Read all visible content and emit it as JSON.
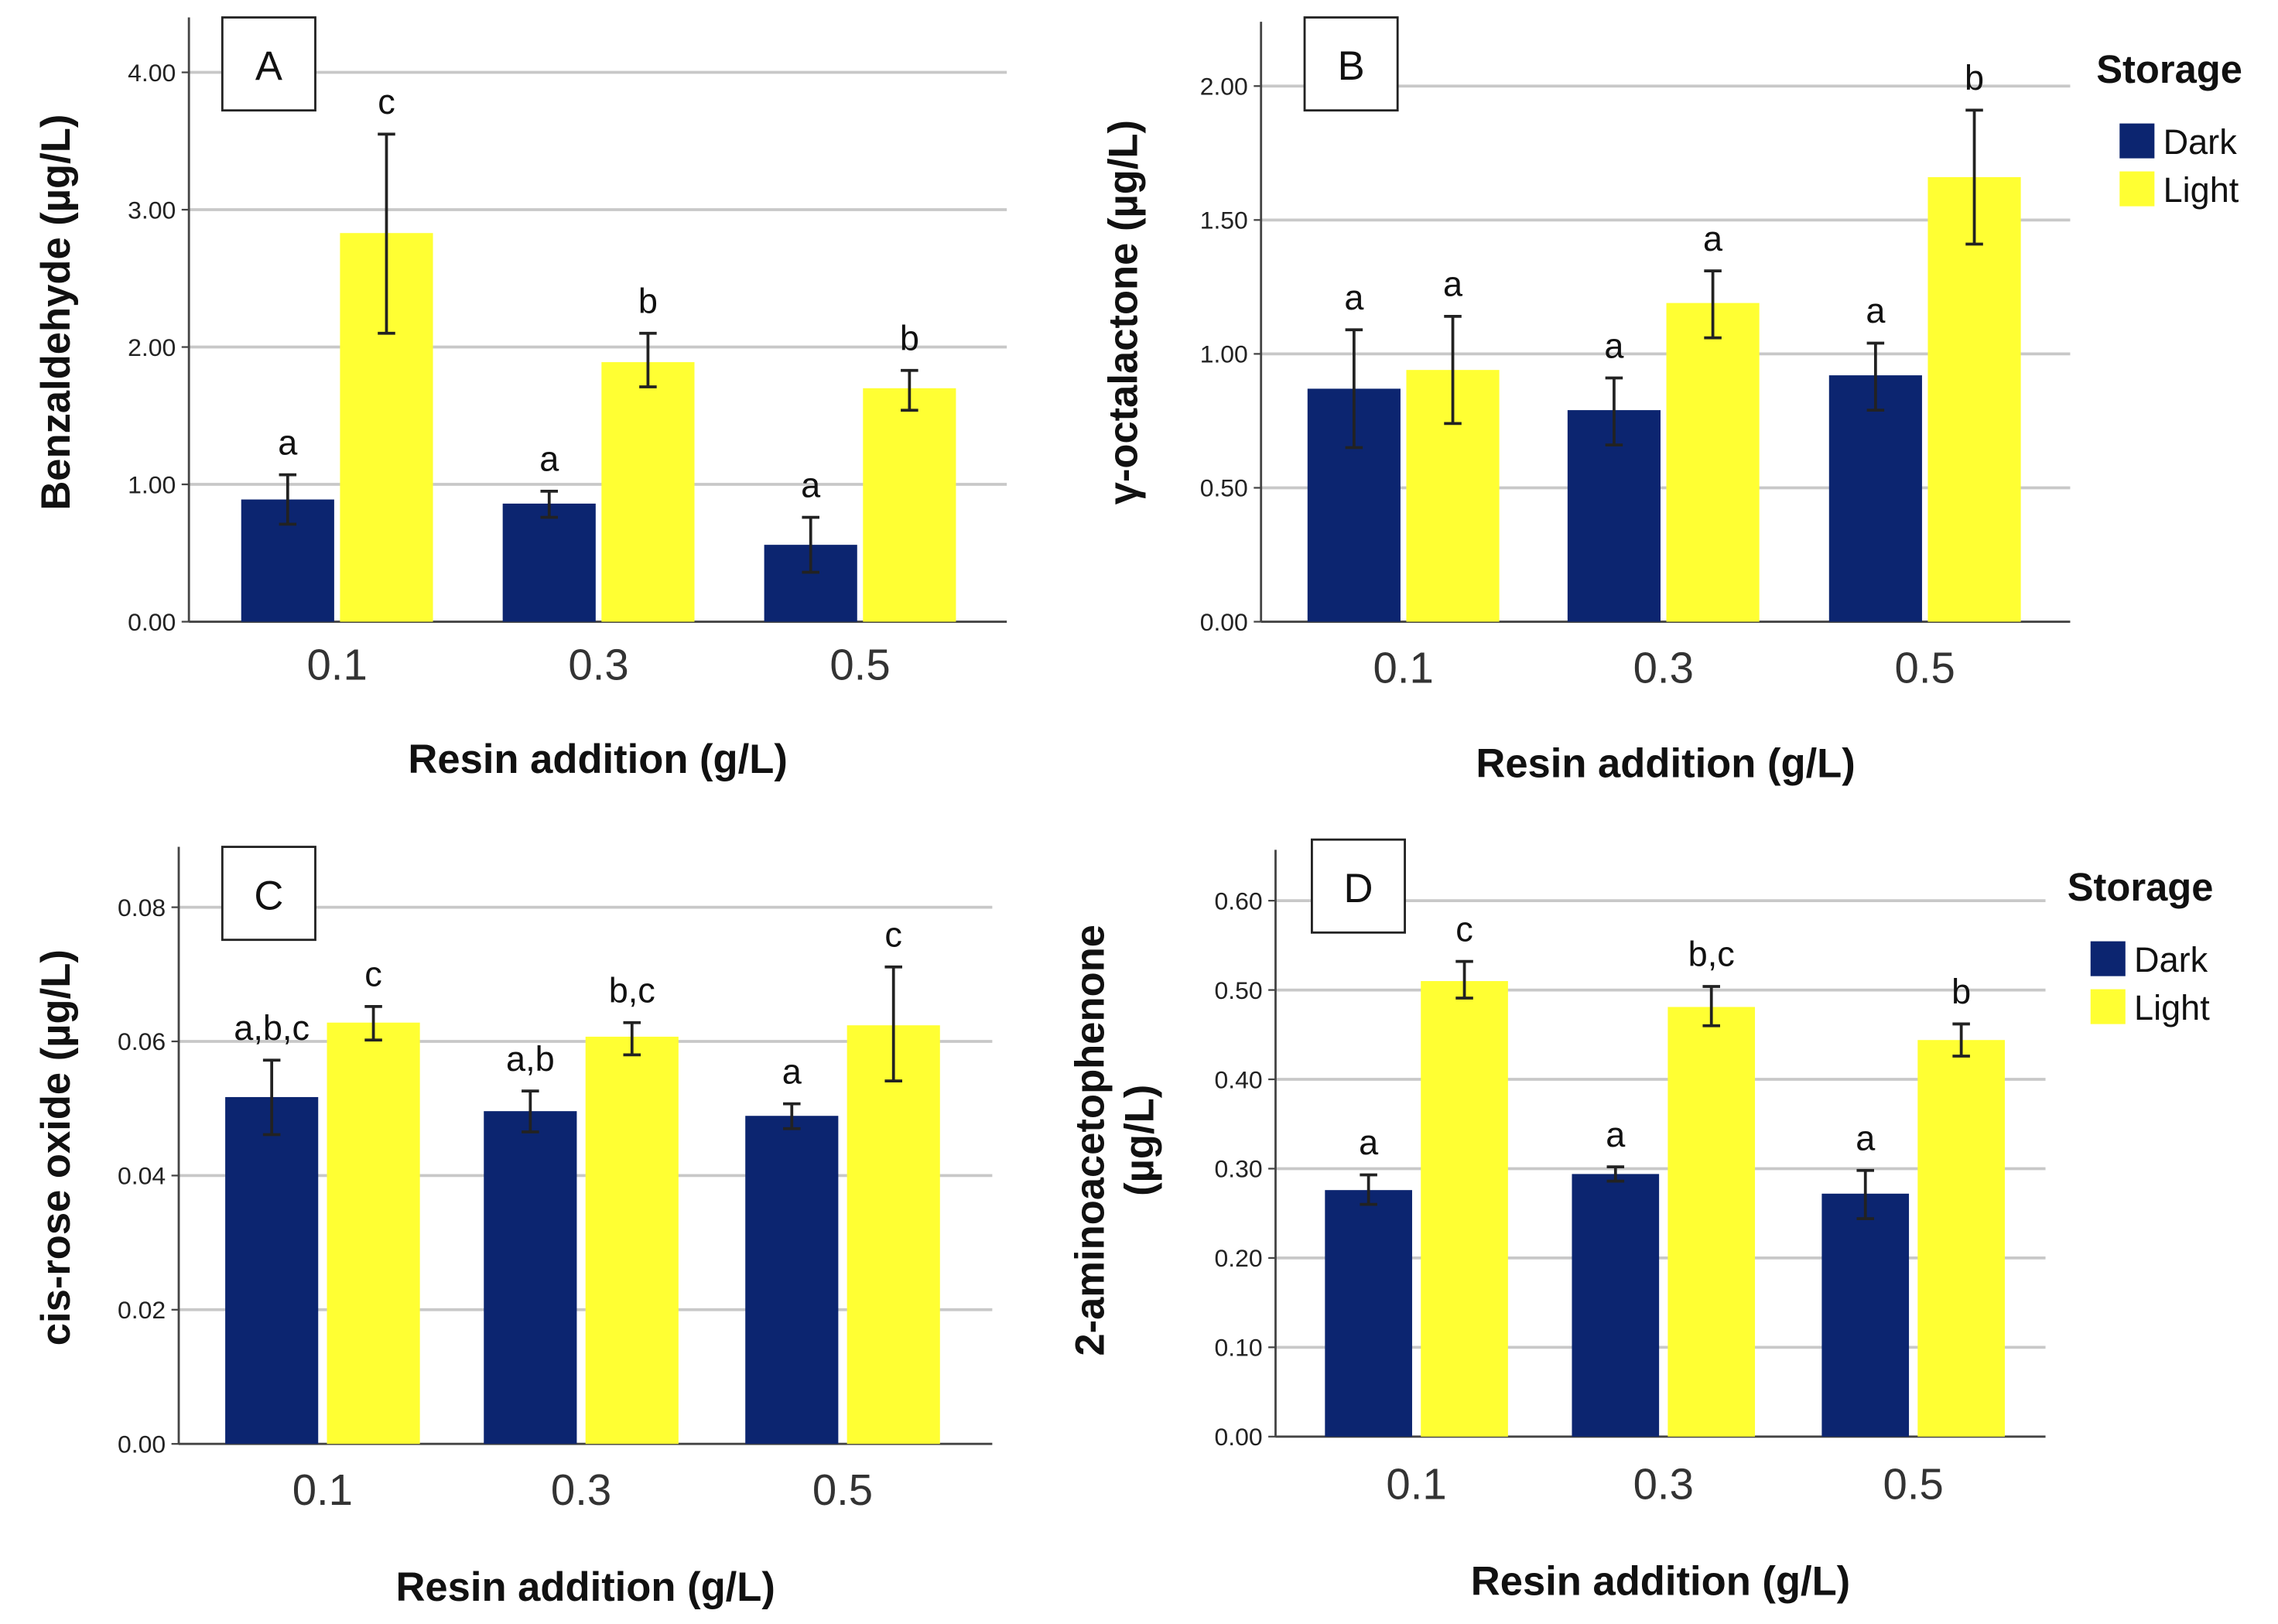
{
  "colors": {
    "dark": "#0c2570",
    "light": "#ffff33",
    "grid": "#c8c8c8"
  },
  "legend": {
    "title": "Storage",
    "items": [
      "Dark",
      "Light"
    ]
  },
  "chart_data": [
    {
      "type": "bar",
      "panel": "A",
      "ylabel": "Benzaldehyde (µg/L)",
      "xlabel": "Resin addition (g/L)",
      "categories": [
        "0.1",
        "0.3",
        "0.5"
      ],
      "yticks": [
        "0.00",
        "1.00",
        "2.00",
        "3.00",
        "4.00"
      ],
      "ylim": [
        0,
        4.4
      ],
      "series": [
        {
          "name": "Dark",
          "values": [
            0.89,
            0.86,
            0.56
          ],
          "err_low": [
            0.71,
            0.76,
            0.36
          ],
          "err_high": [
            1.07,
            0.95,
            0.76
          ],
          "letters": [
            "a",
            "a",
            "a"
          ]
        },
        {
          "name": "Light",
          "values": [
            2.83,
            1.89,
            1.7
          ],
          "err_low": [
            2.1,
            1.71,
            1.54
          ],
          "err_high": [
            3.55,
            2.1,
            1.83
          ],
          "letters": [
            "c",
            "b",
            "b"
          ]
        }
      ]
    },
    {
      "type": "bar",
      "panel": "B",
      "ylabel": "γ-octalactone (µg/L)",
      "xlabel": "Resin addition (g/L)",
      "categories": [
        "0.1",
        "0.3",
        "0.5"
      ],
      "yticks": [
        "0.00",
        "0.50",
        "1.00",
        "1.50",
        "2.00"
      ],
      "ylim": [
        0,
        2.24
      ],
      "series": [
        {
          "name": "Dark",
          "values": [
            0.87,
            0.79,
            0.92
          ],
          "err_low": [
            0.65,
            0.66,
            0.79
          ],
          "err_high": [
            1.09,
            0.91,
            1.04
          ],
          "letters": [
            "a",
            "a",
            "a"
          ]
        },
        {
          "name": "Light",
          "values": [
            0.94,
            1.19,
            1.66
          ],
          "err_low": [
            0.74,
            1.06,
            1.41
          ],
          "err_high": [
            1.14,
            1.31,
            1.91
          ],
          "letters": [
            "a",
            "a",
            "b"
          ]
        }
      ]
    },
    {
      "type": "bar",
      "panel": "C",
      "ylabel": "cis-rose oxide (µg/L)",
      "xlabel": "Resin addition (g/L)",
      "categories": [
        "0.1",
        "0.3",
        "0.5"
      ],
      "yticks": [
        "0.00",
        "0.02",
        "0.04",
        "0.06",
        "0.08"
      ],
      "ylim": [
        0,
        0.089
      ],
      "series": [
        {
          "name": "Dark",
          "values": [
            0.0517,
            0.0496,
            0.0489
          ],
          "err_low": [
            0.0461,
            0.0465,
            0.047
          ],
          "err_high": [
            0.0572,
            0.0526,
            0.0507
          ],
          "letters": [
            "a,b,c",
            "a,b",
            "a"
          ]
        },
        {
          "name": "Light",
          "values": [
            0.0628,
            0.0607,
            0.0624
          ],
          "err_low": [
            0.0602,
            0.058,
            0.0541
          ],
          "err_high": [
            0.0652,
            0.0628,
            0.0711
          ],
          "letters": [
            "c",
            "b,c",
            "c"
          ]
        }
      ]
    },
    {
      "type": "bar",
      "panel": "D",
      "ylabel": [
        "2-aminoacetophenone",
        "(µg/L)"
      ],
      "xlabel": "Resin addition (g/L)",
      "categories": [
        "0.1",
        "0.3",
        "0.5"
      ],
      "yticks": [
        "0.00",
        "0.10",
        "0.20",
        "0.30",
        "0.40",
        "0.50",
        "0.60"
      ],
      "ylim": [
        0,
        0.657
      ],
      "series": [
        {
          "name": "Dark",
          "values": [
            0.276,
            0.294,
            0.272
          ],
          "err_low": [
            0.26,
            0.286,
            0.244
          ],
          "err_high": [
            0.293,
            0.302,
            0.298
          ],
          "letters": [
            "a",
            "a",
            "a"
          ]
        },
        {
          "name": "Light",
          "values": [
            0.51,
            0.481,
            0.444
          ],
          "err_low": [
            0.491,
            0.46,
            0.426
          ],
          "err_high": [
            0.532,
            0.504,
            0.462
          ],
          "letters": [
            "c",
            "b,c",
            "b"
          ]
        }
      ]
    }
  ]
}
